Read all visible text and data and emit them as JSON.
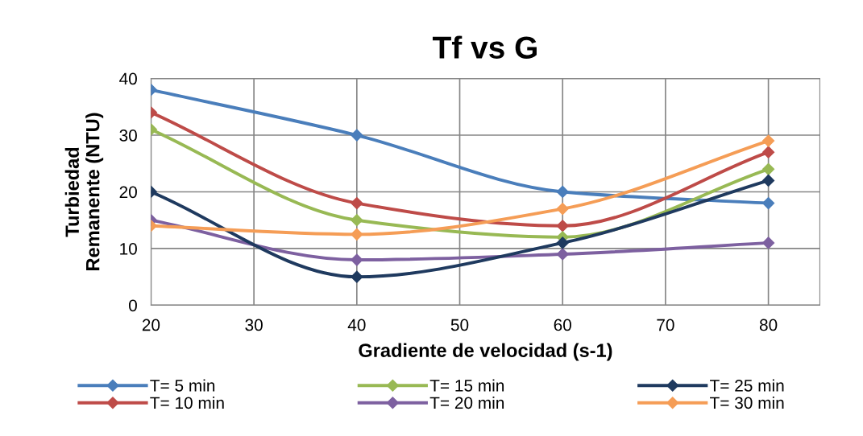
{
  "chart_data": {
    "type": "line",
    "title": "Tf vs G",
    "xlabel": "Gradiente de velocidad (s-1)",
    "ylabel": "Turbiedad\nRemanente (NTU)",
    "x": [
      20,
      40,
      60,
      80
    ],
    "xlim": [
      20,
      85
    ],
    "xticks": [
      20,
      30,
      40,
      50,
      60,
      70,
      80
    ],
    "ylim": [
      0,
      40
    ],
    "yticks": [
      0,
      10,
      20,
      30,
      40
    ],
    "grid": true,
    "legend": "bottom",
    "marker": "diamond",
    "line_style": "solid",
    "series": [
      {
        "name": "T= 5 min",
        "color": "#4a7ebb",
        "values": [
          38,
          30,
          20,
          18
        ]
      },
      {
        "name": "T= 10 min",
        "color": "#be4b48",
        "values": [
          34,
          18,
          14,
          27
        ]
      },
      {
        "name": "T= 15 min",
        "color": "#98b954",
        "values": [
          31,
          15,
          12,
          24
        ]
      },
      {
        "name": "T= 20 min",
        "color": "#7d60a0",
        "values": [
          15,
          8,
          9,
          11
        ]
      },
      {
        "name": "T= 25 min",
        "color": "#1f3a5f",
        "values": [
          20,
          5,
          11,
          22
        ]
      },
      {
        "name": "T= 30 min",
        "color": "#f59d56",
        "values": [
          14,
          12.5,
          17,
          29
        ]
      }
    ]
  }
}
